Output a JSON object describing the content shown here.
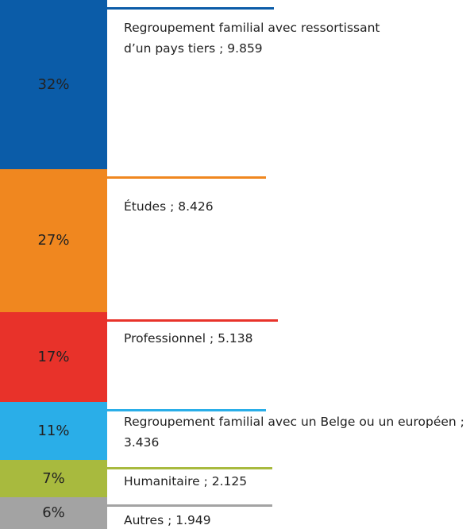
{
  "chart_data": {
    "type": "bar",
    "categories": [
      "Regroupement  familial avec ressortissant d’un pays tiers ; 9.859",
      "Études ; 8.426",
      "Professionnel ; 5.138",
      "Regroupement  familial avec un Belge ou un européen  ; 3.436",
      "Humanitaire ; 2.125",
      "Autres ; 1.949"
    ],
    "values": [
      32,
      27,
      17,
      11,
      7,
      6
    ],
    "value_labels": [
      "32%",
      "27%",
      "17%",
      "11%",
      "7%",
      "6%"
    ],
    "colors": [
      "#0b5ca8",
      "#f0871f",
      "#e8322a",
      "#2aaee8",
      "#a8ba3e",
      "#a3a3a3"
    ]
  }
}
